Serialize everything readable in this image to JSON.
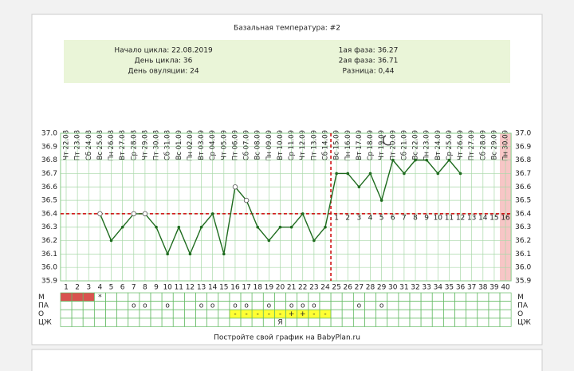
{
  "chart_data": {
    "type": "line",
    "title": "Базальная температура: #2",
    "info_left": [
      "Начало цикла: 22.08.2019",
      "День цикла: 36",
      "День овуляции: 24"
    ],
    "info_right": [
      "1ая фаза: 36.27",
      "2ая фаза: 36.71",
      "Разница: 0,44"
    ],
    "categories": [
      1,
      2,
      3,
      4,
      5,
      6,
      7,
      8,
      9,
      10,
      11,
      12,
      13,
      14,
      15,
      16,
      17,
      18,
      19,
      20,
      21,
      22,
      23,
      24,
      25,
      26,
      27,
      28,
      29,
      30,
      31,
      32,
      33,
      34,
      35,
      36,
      37,
      38,
      39,
      40
    ],
    "dates": [
      "Чт 22.08",
      "Пт 23.08",
      "Сб 24.08",
      "Вс 25.08",
      "Пн 26.08",
      "Вт 27.08",
      "Ср 28.08",
      "Чт 29.08",
      "Пт 30.08",
      "Сб 31.08",
      "Вс 01.09",
      "Пн 02.09",
      "Вт 03.09",
      "Ср 04.09",
      "Чт 05.09",
      "Пт 06.09",
      "Сб 07.09",
      "Вс 08.09",
      "Пн 09.09",
      "Вт 10.09",
      "Ср 11.09",
      "Чт 12.09",
      "Пт 13.09",
      "Сб 14.09",
      "Вс 15.09",
      "Пн 16.09",
      "Вт 17.09",
      "Ср 18.09",
      "Чт 19.09",
      "Пт 20.09",
      "Сб 21.09",
      "Вс 22.09",
      "Пн 23.09",
      "Вт 24.09",
      "Ср 25.09",
      "Чт 26.09",
      "Пт 27.09",
      "Сб 28.09",
      "Вс 29.09",
      "Пн 30.09"
    ],
    "values": [
      null,
      null,
      null,
      36.4,
      36.2,
      36.3,
      36.4,
      36.4,
      36.3,
      36.1,
      36.3,
      36.1,
      36.3,
      36.4,
      36.1,
      36.6,
      36.5,
      36.3,
      36.2,
      36.3,
      36.3,
      36.4,
      36.2,
      36.3,
      36.7,
      36.7,
      36.6,
      36.7,
      36.5,
      36.8,
      36.7,
      36.8,
      36.8,
      36.7,
      36.8,
      36.7,
      null,
      null,
      null,
      null
    ],
    "color": "#1e6b1e",
    "open_markers": [
      4,
      7,
      8,
      16,
      17
    ],
    "ylim": [
      35.9,
      37.0
    ],
    "yticks": [
      35.9,
      {
        "value": 36.0,
        "label": "36.0"
      },
      36.1,
      36.2,
      36.3,
      36.4,
      36.5,
      36.6,
      36.7,
      36.8,
      36.9,
      {
        "value": 37.0,
        "label": "37.0"
      }
    ],
    "grid": true,
    "cover_line": 36.4,
    "ovulation_day": 24,
    "luteal_days": [
      1,
      2,
      3,
      4,
      5,
      6,
      7,
      8,
      9,
      10,
      11,
      12,
      13,
      14,
      15,
      16
    ],
    "cycle_end_day": 40,
    "rows": [
      {
        "label": "М",
        "fill": "#d9534f",
        "fill_days": [
          1,
          2,
          3
        ],
        "marks": [
          {
            "day": 4,
            "text": "*"
          }
        ]
      },
      {
        "label": "ПА",
        "marks": [
          {
            "day": 7,
            "text": "o"
          },
          {
            "day": 8,
            "text": "o"
          },
          {
            "day": 10,
            "text": "o"
          },
          {
            "day": 13,
            "text": "o"
          },
          {
            "day": 14,
            "text": "o"
          },
          {
            "day": 16,
            "text": "o"
          },
          {
            "day": 17,
            "text": "o"
          },
          {
            "day": 19,
            "text": "o"
          },
          {
            "day": 21,
            "text": "o"
          },
          {
            "day": 22,
            "text": "o"
          },
          {
            "day": 23,
            "text": "o"
          },
          {
            "day": 27,
            "text": "o"
          },
          {
            "day": 29,
            "text": "o"
          }
        ]
      },
      {
        "label": "О",
        "fill": "#ffff33",
        "fill_days": [
          16,
          17,
          18,
          19,
          20,
          21,
          22,
          23,
          24
        ],
        "marks": [
          {
            "day": 16,
            "text": "-"
          },
          {
            "day": 17,
            "text": "-"
          },
          {
            "day": 18,
            "text": "-"
          },
          {
            "day": 19,
            "text": "-"
          },
          {
            "day": 20,
            "text": "-"
          },
          {
            "day": 21,
            "text": "+"
          },
          {
            "day": 22,
            "text": "+"
          },
          {
            "day": 23,
            "text": "-"
          },
          {
            "day": 24,
            "text": "-"
          }
        ]
      },
      {
        "label": "ЦЖ",
        "marks": [
          {
            "day": 20,
            "text": "Я"
          }
        ]
      }
    ],
    "footer": "Постройте свой график на BabyPlan.ru"
  }
}
